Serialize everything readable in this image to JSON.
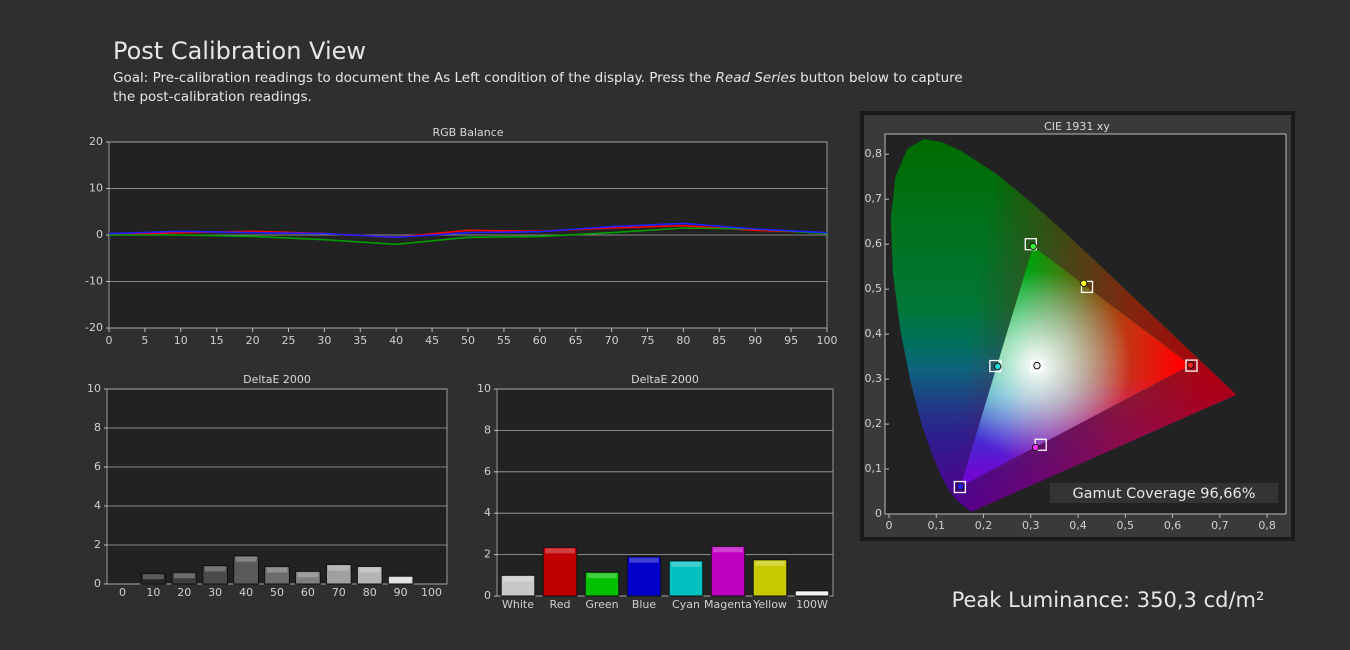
{
  "header": {
    "title": "Post Calibration View",
    "goal_line1": [
      "Goal: Pre-calibration readings to document the As Left condition of the display. Press the ",
      "Read Series",
      " button below to capture"
    ],
    "goal_line2": "the post-calibration readings.",
    "gamut_coverage": "Gamut Coverage 96,66%",
    "peak_luminance": "Peak Luminance: 350,3 cd/m²"
  },
  "chart_data": [
    {
      "type": "line",
      "title": "RGB Balance",
      "x": [
        0,
        10,
        20,
        30,
        40,
        50,
        60,
        70,
        80,
        90,
        100
      ],
      "series": [
        {
          "color": "#ff0000",
          "values": [
            0,
            0.5,
            0.8,
            0.3,
            -0.5,
            1,
            0.8,
            1.5,
            2,
            1,
            0.5
          ]
        },
        {
          "color": "#00a000",
          "values": [
            0,
            0,
            -0.3,
            -1,
            -2,
            -0.5,
            -0.3,
            0.5,
            1.5,
            1.3,
            0.3
          ]
        },
        {
          "color": "#2020ff",
          "values": [
            0.3,
            0.8,
            0.5,
            0.3,
            -0.5,
            0.5,
            0.7,
            1.8,
            2.5,
            1.3,
            0.5
          ]
        }
      ],
      "xlim": [
        0,
        100
      ],
      "xticks": [
        0,
        5,
        10,
        15,
        20,
        25,
        30,
        35,
        40,
        45,
        50,
        55,
        60,
        65,
        70,
        75,
        80,
        85,
        90,
        95,
        100
      ],
      "ylim": [
        -20,
        20
      ],
      "yticks": [
        -20,
        -10,
        0,
        10,
        20
      ],
      "grid": true
    },
    {
      "type": "bar",
      "title": "DeltaE 2000",
      "categories": [
        "0",
        "10",
        "20",
        "30",
        "40",
        "50",
        "60",
        "70",
        "80",
        "90",
        "100"
      ],
      "values": [
        null,
        0.55,
        0.6,
        0.95,
        1.45,
        0.9,
        0.65,
        1.0,
        0.9,
        0.4,
        null
      ],
      "colors": [
        null,
        "#262626",
        "#3c3c3c",
        "#4a4a4a",
        "#5a5a5a",
        "#6c6c6c",
        "#7e7e7e",
        "#a0a0a0",
        "#b4b4b4",
        "#dcdcdc",
        null
      ],
      "ylim": [
        0,
        10
      ],
      "yticks": [
        0,
        2,
        4,
        6,
        8,
        10
      ],
      "grid": true
    },
    {
      "type": "bar",
      "title": "DeltaE 2000",
      "categories": [
        "White",
        "Red",
        "Green",
        "Blue",
        "Cyan",
        "Magenta",
        "Yellow",
        "100W"
      ],
      "values": [
        1.0,
        2.35,
        1.15,
        1.9,
        1.7,
        2.4,
        1.75,
        0.25
      ],
      "colors": [
        "#c8c8c8",
        "#c00000",
        "#00c000",
        "#0000c8",
        "#00c0c0",
        "#c000c0",
        "#c8c800",
        "#f0f0f0"
      ],
      "ylim": [
        0,
        10
      ],
      "yticks": [
        0,
        2,
        4,
        6,
        8,
        10
      ],
      "grid": true
    },
    {
      "type": "scatter",
      "title": "CIE 1931 xy",
      "series": [
        {
          "marker": "square",
          "color": "#ffffff",
          "x": [
            0.64,
            0.3,
            0.15,
            0.3127,
            0.225,
            0.419,
            0.321
          ],
          "y": [
            0.33,
            0.6,
            0.06,
            0.329,
            0.329,
            0.505,
            0.154
          ]
        },
        {
          "marker": "circle",
          "colors": [
            "#ff2020",
            "#30ff30",
            "#2020ff",
            "#f0f0f0",
            "#20e0e0",
            "#ffff30",
            "#ff30ff"
          ],
          "x": [
            0.638,
            0.305,
            0.151,
            0.313,
            0.23,
            0.412,
            0.31
          ],
          "y": [
            0.331,
            0.595,
            0.061,
            0.33,
            0.328,
            0.513,
            0.148
          ]
        }
      ],
      "xlim": [
        0,
        0.84
      ],
      "xticks": [
        0,
        {
          "value": 0.1,
          "label": "0,1"
        },
        {
          "value": 0.2,
          "label": "0,2"
        },
        {
          "value": 0.3,
          "label": "0,3"
        },
        {
          "value": 0.4,
          "label": "0,4"
        },
        {
          "value": 0.5,
          "label": "0,5"
        },
        {
          "value": 0.6,
          "label": "0,6"
        },
        {
          "value": 0.7,
          "label": "0,7"
        },
        {
          "value": 0.8,
          "label": "0,8"
        }
      ],
      "ylim": [
        0,
        0.845
      ],
      "yticks": [
        0,
        {
          "value": 0.1,
          "label": "0,1"
        },
        {
          "value": 0.2,
          "label": "0,2"
        },
        {
          "value": 0.3,
          "label": "0,3"
        },
        {
          "value": 0.4,
          "label": "0,4"
        },
        {
          "value": 0.5,
          "label": "0,5"
        },
        {
          "value": 0.6,
          "label": "0,6"
        },
        {
          "value": 0.7,
          "label": "0,7"
        },
        {
          "value": 0.8,
          "label": "0,8"
        }
      ]
    }
  ]
}
